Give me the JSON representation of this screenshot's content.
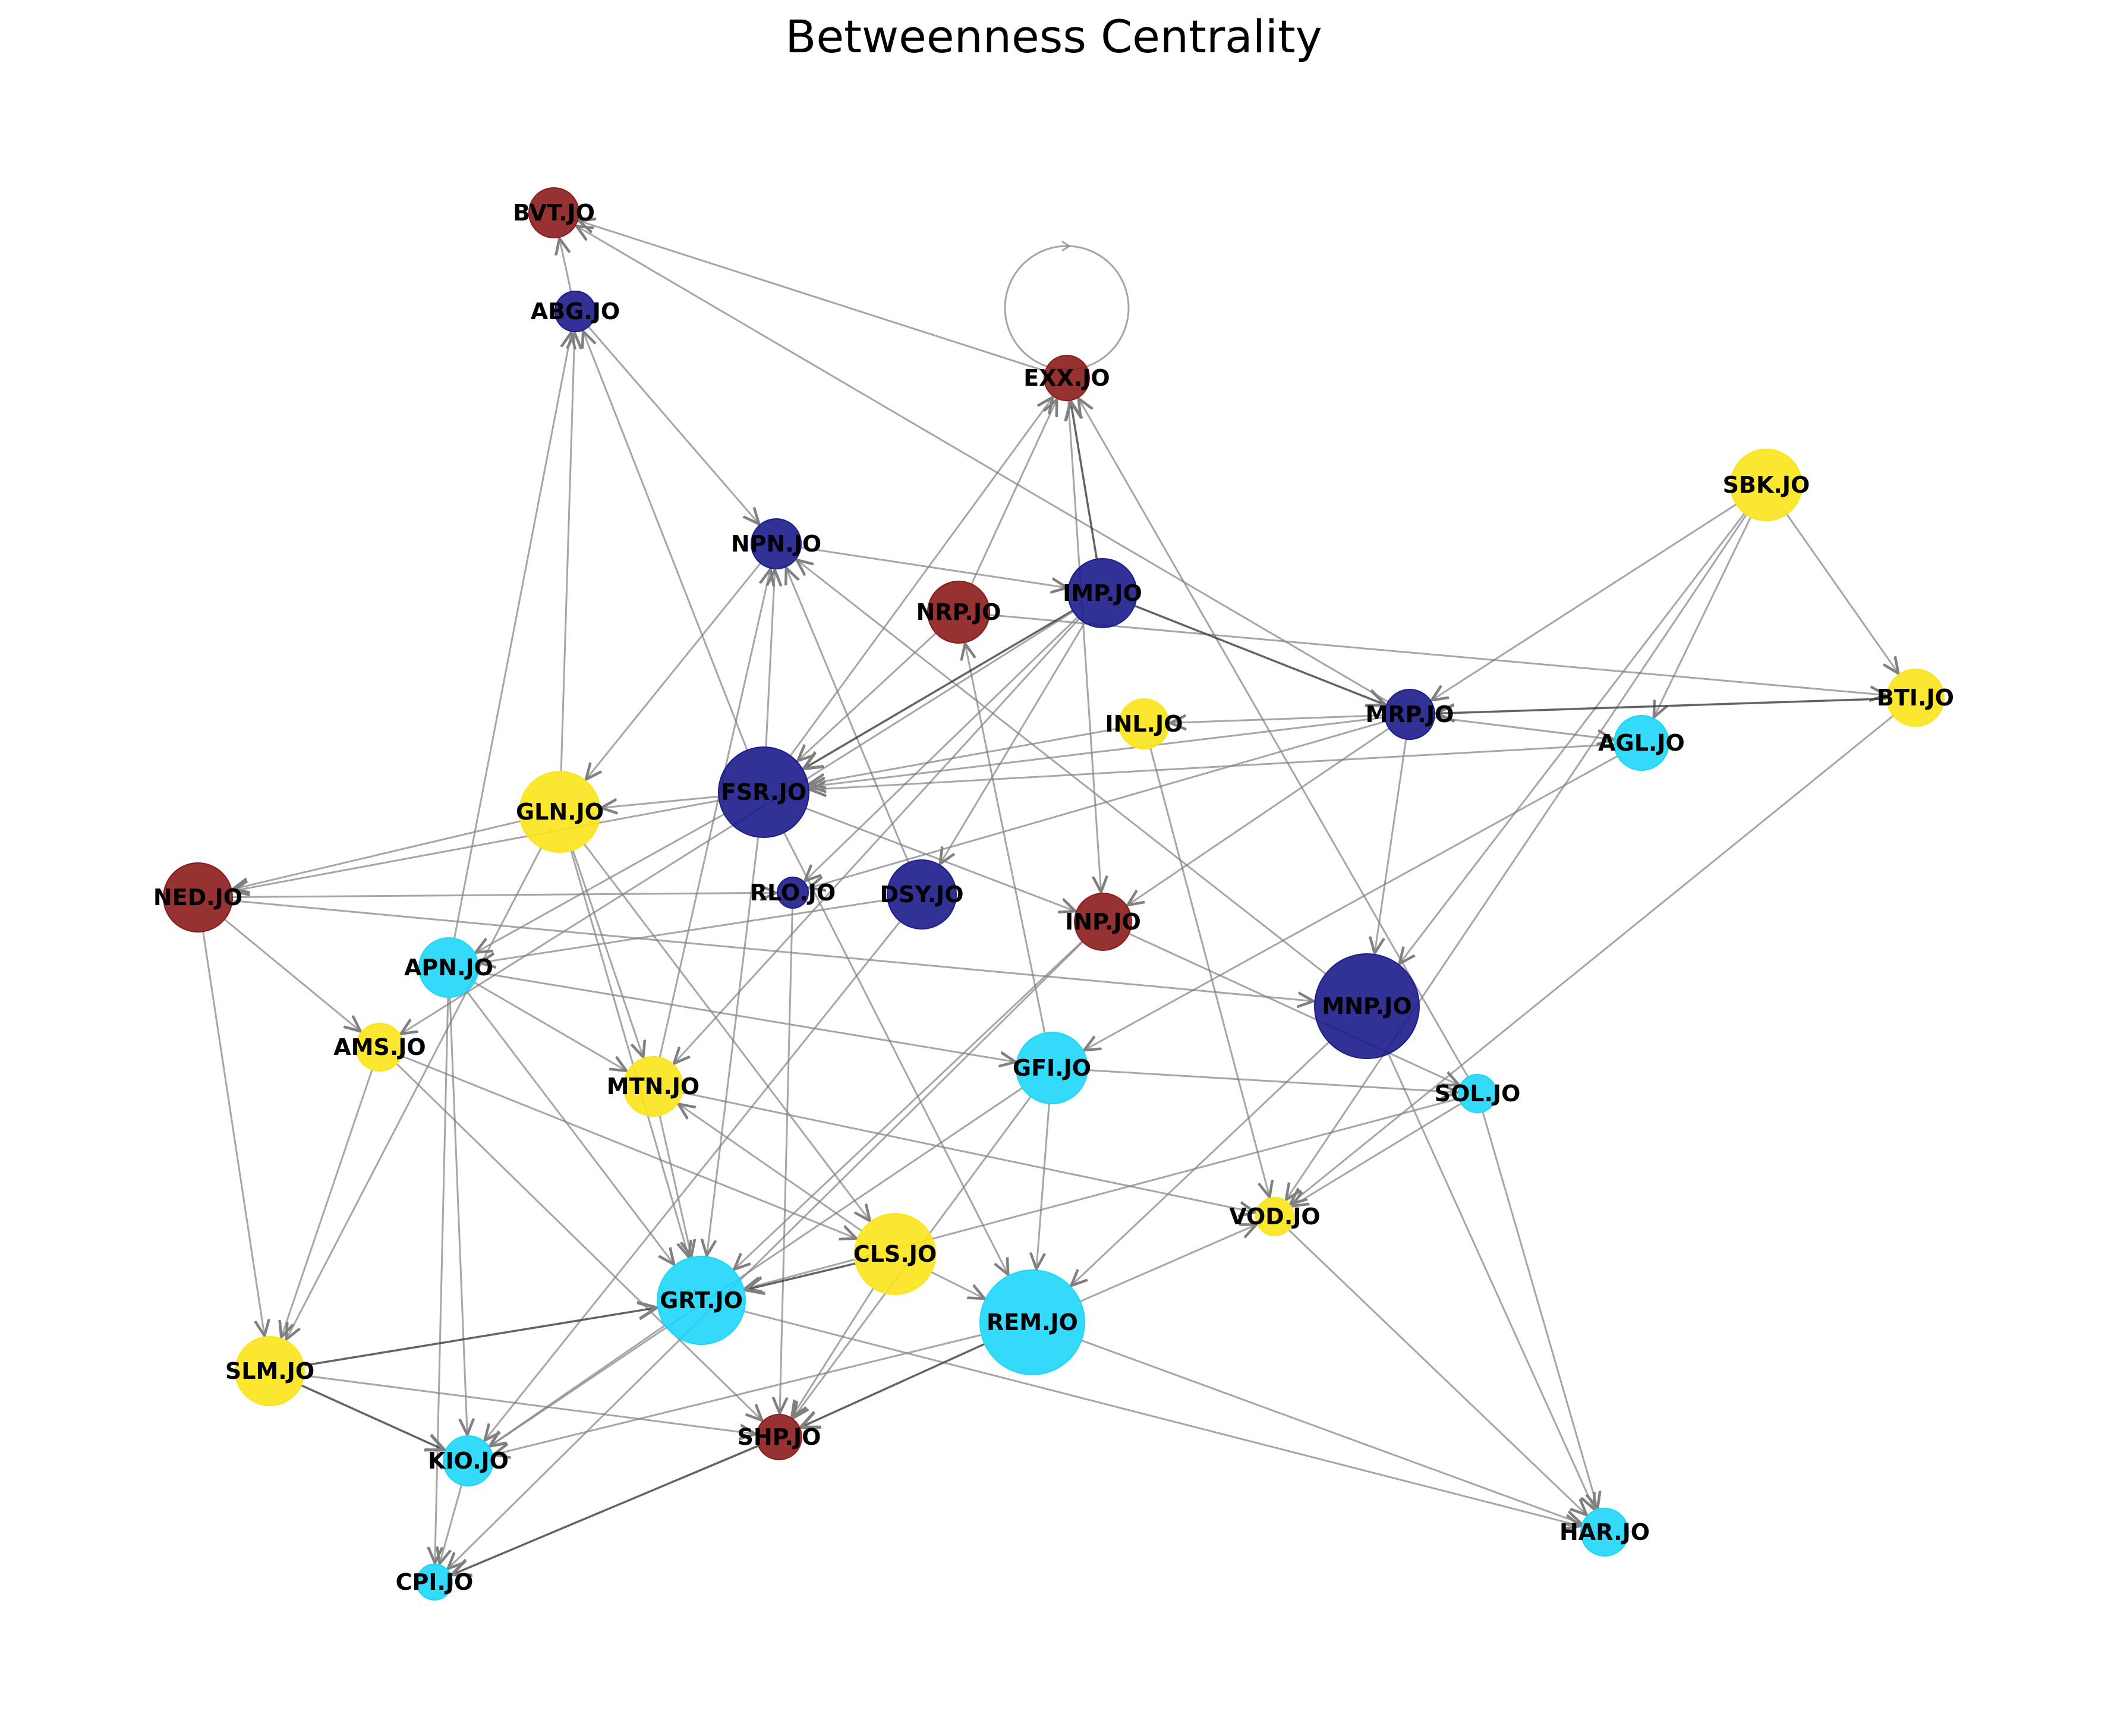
{
  "title": "Betweenness Centrality",
  "colors": {
    "darkred": "#8b1c1c",
    "navy": "#1c1c8b",
    "cyan": "#1ed6f8",
    "yellow": "#fbe41a",
    "edge": "#808080"
  },
  "nodes": [
    {
      "id": "BVT.JO",
      "label": "BVT.JO",
      "color": "darkred"
    },
    {
      "id": "ABG.JO",
      "label": "ABG.JO",
      "color": "navy"
    },
    {
      "id": "EXX.JO",
      "label": "EXX.JO",
      "color": "darkred"
    },
    {
      "id": "SBK.JO",
      "label": "SBK.JO",
      "color": "yellow"
    },
    {
      "id": "NPN.JO",
      "label": "NPN.JO",
      "color": "navy"
    },
    {
      "id": "NRP.JO",
      "label": "NRP.JO",
      "color": "darkred"
    },
    {
      "id": "IMP.JO",
      "label": "IMP.JO",
      "color": "navy"
    },
    {
      "id": "BTI.JO",
      "label": "BTI.JO",
      "color": "yellow"
    },
    {
      "id": "MRP.JO",
      "label": "MRP.JO",
      "color": "navy"
    },
    {
      "id": "INL.JO",
      "label": "INL.JO",
      "color": "yellow"
    },
    {
      "id": "AGL.JO",
      "label": "AGL.JO",
      "color": "cyan"
    },
    {
      "id": "FSR.JO",
      "label": "FSR.JO",
      "color": "navy"
    },
    {
      "id": "GLN.JO",
      "label": "GLN.JO",
      "color": "yellow"
    },
    {
      "id": "NED.JO",
      "label": "NED.JO",
      "color": "darkred"
    },
    {
      "id": "RLO.JO",
      "label": "RLO.JO",
      "color": "navy"
    },
    {
      "id": "DSY.JO",
      "label": "DSY.JO",
      "color": "navy"
    },
    {
      "id": "INP.JO",
      "label": "INP.JO",
      "color": "darkred"
    },
    {
      "id": "APN.JO",
      "label": "APN.JO",
      "color": "cyan"
    },
    {
      "id": "MNP.JO",
      "label": "MNP.JO",
      "color": "navy"
    },
    {
      "id": "AMS.JO",
      "label": "AMS.JO",
      "color": "yellow"
    },
    {
      "id": "MTN.JO",
      "label": "MTN.JO",
      "color": "yellow"
    },
    {
      "id": "GFI.JO",
      "label": "GFI.JO",
      "color": "cyan"
    },
    {
      "id": "SOL.JO",
      "label": "SOL.JO",
      "color": "cyan"
    },
    {
      "id": "VOD.JO",
      "label": "VOD.JO",
      "color": "yellow"
    },
    {
      "id": "CLS.JO",
      "label": "CLS.JO",
      "color": "yellow"
    },
    {
      "id": "GRT.JO",
      "label": "GRT.JO",
      "color": "cyan"
    },
    {
      "id": "REM.JO",
      "label": "REM.JO",
      "color": "cyan"
    },
    {
      "id": "SLM.JO",
      "label": "SLM.JO",
      "color": "yellow"
    },
    {
      "id": "SHP.JO",
      "label": "SHP.JO",
      "color": "darkred"
    },
    {
      "id": "KIO.JO",
      "label": "KIO.JO",
      "color": "cyan"
    },
    {
      "id": "HAR.JO",
      "label": "HAR.JO",
      "color": "cyan"
    },
    {
      "id": "CPI.JO",
      "label": "CPI.JO",
      "color": "cyan"
    }
  ],
  "edges": [
    [
      "ABG.JO",
      "BVT.JO"
    ],
    [
      "EXX.JO",
      "BVT.JO"
    ],
    [
      "MRP.JO",
      "BVT.JO"
    ],
    [
      "ABG.JO",
      "NPN.JO"
    ],
    [
      "FSR.JO",
      "ABG.JO"
    ],
    [
      "GLN.JO",
      "ABG.JO"
    ],
    [
      "APN.JO",
      "ABG.JO"
    ],
    [
      "EXX.JO",
      "EXX.JO"
    ],
    [
      "FSR.JO",
      "EXX.JO"
    ],
    [
      "NRP.JO",
      "EXX.JO"
    ],
    [
      "SOL.JO",
      "EXX.JO"
    ],
    [
      "EXX.JO",
      "INP.JO"
    ],
    [
      "SBK.JO",
      "MRP.JO"
    ],
    [
      "SBK.JO",
      "AGL.JO"
    ],
    [
      "SBK.JO",
      "BTI.JO"
    ],
    [
      "SBK.JO",
      "VOD.JO"
    ],
    [
      "SBK.JO",
      "MNP.JO"
    ],
    [
      "NPN.JO",
      "IMP.JO"
    ],
    [
      "NPN.JO",
      "GLN.JO"
    ],
    [
      "MNP.JO",
      "NPN.JO"
    ],
    [
      "DSY.JO",
      "NPN.JO"
    ],
    [
      "FSR.JO",
      "NPN.JO"
    ],
    [
      "MTN.JO",
      "NPN.JO"
    ],
    [
      "NRP.JO",
      "BTI.JO"
    ],
    [
      "NRP.JO",
      "FSR.JO"
    ],
    [
      "GFI.JO",
      "NRP.JO"
    ],
    [
      "IMP.JO",
      "MRP.JO"
    ],
    [
      "IMP.JO",
      "FSR.JO"
    ],
    [
      "IMP.JO",
      "EXX.JO"
    ],
    [
      "IMP.JO",
      "RLO.JO"
    ],
    [
      "IMP.JO",
      "MTN.JO"
    ],
    [
      "IMP.JO",
      "DSY.JO"
    ],
    [
      "IMP.JO",
      "AMS.JO"
    ],
    [
      "BTI.JO",
      "MRP.JO"
    ],
    [
      "BTI.JO",
      "VOD.JO"
    ],
    [
      "MRP.JO",
      "INL.JO"
    ],
    [
      "MRP.JO",
      "AGL.JO"
    ],
    [
      "MRP.JO",
      "MNP.JO"
    ],
    [
      "MRP.JO",
      "FSR.JO"
    ],
    [
      "MRP.JO",
      "RLO.JO"
    ],
    [
      "MRP.JO",
      "INP.JO"
    ],
    [
      "INL.JO",
      "FSR.JO"
    ],
    [
      "INL.JO",
      "VOD.JO"
    ],
    [
      "AGL.JO",
      "FSR.JO"
    ],
    [
      "AGL.JO",
      "GFI.JO"
    ],
    [
      "FSR.JO",
      "GLN.JO"
    ],
    [
      "FSR.JO",
      "INP.JO"
    ],
    [
      "FSR.JO",
      "GRT.JO"
    ],
    [
      "FSR.JO",
      "REM.JO"
    ],
    [
      "FSR.JO",
      "NED.JO"
    ],
    [
      "FSR.JO",
      "APN.JO"
    ],
    [
      "GLN.JO",
      "NED.JO"
    ],
    [
      "GLN.JO",
      "MTN.JO"
    ],
    [
      "GLN.JO",
      "GRT.JO"
    ],
    [
      "GLN.JO",
      "CLS.JO"
    ],
    [
      "GLN.JO",
      "SLM.JO"
    ],
    [
      "NED.JO",
      "RLO.JO"
    ],
    [
      "NED.JO",
      "MNP.JO"
    ],
    [
      "NED.JO",
      "AMS.JO"
    ],
    [
      "NED.JO",
      "SLM.JO"
    ],
    [
      "RLO.JO",
      "SHP.JO"
    ],
    [
      "DSY.JO",
      "APN.JO"
    ],
    [
      "DSY.JO",
      "KIO.JO"
    ],
    [
      "INP.JO",
      "GRT.JO"
    ],
    [
      "INP.JO",
      "CPI.JO"
    ],
    [
      "INP.JO",
      "SOL.JO"
    ],
    [
      "APN.JO",
      "MTN.JO"
    ],
    [
      "APN.JO",
      "GFI.JO"
    ],
    [
      "APN.JO",
      "GRT.JO"
    ],
    [
      "APN.JO",
      "KIO.JO"
    ],
    [
      "APN.JO",
      "CPI.JO"
    ],
    [
      "MNP.JO",
      "REM.JO"
    ],
    [
      "MNP.JO",
      "HAR.JO"
    ],
    [
      "AMS.JO",
      "SLM.JO"
    ],
    [
      "AMS.JO",
      "CLS.JO"
    ],
    [
      "AMS.JO",
      "SHP.JO"
    ],
    [
      "MTN.JO",
      "VOD.JO"
    ],
    [
      "MTN.JO",
      "GRT.JO"
    ],
    [
      "CLS.JO",
      "MTN.JO"
    ],
    [
      "GFI.JO",
      "SOL.JO"
    ],
    [
      "GFI.JO",
      "REM.JO"
    ],
    [
      "GFI.JO",
      "SHP.JO"
    ],
    [
      "GFI.JO",
      "KIO.JO"
    ],
    [
      "SOL.JO",
      "GRT.JO"
    ],
    [
      "SOL.JO",
      "HAR.JO"
    ],
    [
      "SOL.JO",
      "VOD.JO"
    ],
    [
      "REM.JO",
      "VOD.JO"
    ],
    [
      "VOD.JO",
      "HAR.JO"
    ],
    [
      "CLS.JO",
      "GRT.JO"
    ],
    [
      "CLS.JO",
      "SHP.JO"
    ],
    [
      "CLS.JO",
      "REM.JO"
    ],
    [
      "GRT.JO",
      "HAR.JO"
    ],
    [
      "GRT.JO",
      "KIO.JO"
    ],
    [
      "REM.JO",
      "SHP.JO"
    ],
    [
      "REM.JO",
      "HAR.JO"
    ],
    [
      "REM.JO",
      "KIO.JO"
    ],
    [
      "SLM.JO",
      "GRT.JO"
    ],
    [
      "SLM.JO",
      "KIO.JO"
    ],
    [
      "SLM.JO",
      "SHP.JO"
    ],
    [
      "SHP.JO",
      "CPI.JO"
    ],
    [
      "KIO.JO",
      "CPI.JO"
    ]
  ]
}
